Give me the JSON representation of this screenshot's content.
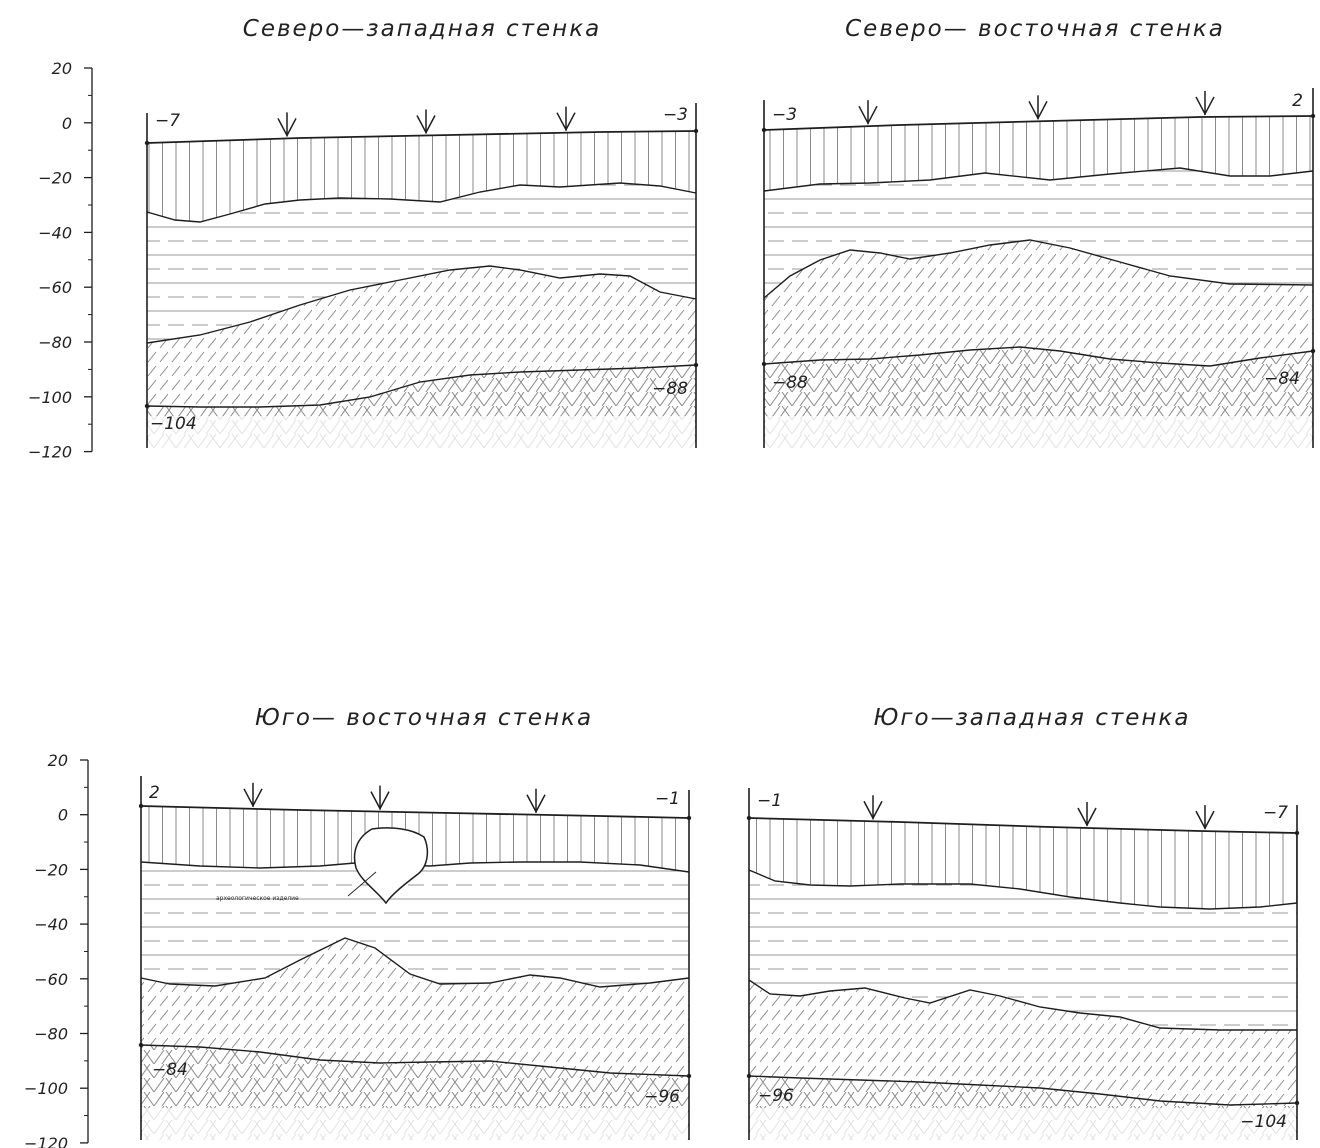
{
  "y_axis_ticks": [
    "20",
    "0",
    "−20",
    "−40",
    "−60",
    "−80",
    "−100",
    "−120"
  ],
  "feature_label": "археологическое изделие",
  "panels": [
    {
      "title": "Северо—западная стенка",
      "left_top": "−7",
      "right_top": "−3",
      "left_bottom": "−104",
      "right_bottom": "−88"
    },
    {
      "title": "Северо— восточная стенка",
      "left_top": "−3",
      "right_top": "2",
      "left_bottom": "−88",
      "right_bottom": "−84"
    },
    {
      "title": "Юго— восточная стенка",
      "left_top": "2",
      "right_top": "−1",
      "left_bottom": "−84",
      "right_bottom": "−96"
    },
    {
      "title": "Юго—западная стенка",
      "left_top": "−1",
      "right_top": "−7",
      "left_bottom": "−96",
      "right_bottom": "−104"
    }
  ],
  "colors": {
    "line": "#1e1e1e",
    "hatch": "#8a8a8a",
    "background": "#ffffff"
  }
}
